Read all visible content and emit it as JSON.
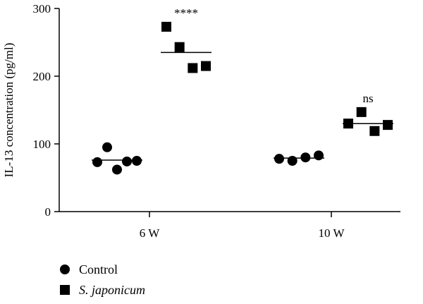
{
  "chart_data": {
    "type": "scatter",
    "ylabel": "IL-13 concentration (pg/ml)",
    "ylim": [
      0,
      300
    ],
    "yticks": [
      0,
      100,
      200,
      300
    ],
    "categories": [
      "6 W",
      "10 W"
    ],
    "series": [
      {
        "name": "Control",
        "marker": "circle",
        "color": "#000000",
        "groups": [
          {
            "category": "6 W",
            "values": [
              73,
              95,
              62,
              74,
              75
            ],
            "mean": 76
          },
          {
            "category": "10 W",
            "values": [
              78,
              75,
              80,
              83
            ],
            "mean": 79
          }
        ]
      },
      {
        "name": "S. japonicum",
        "marker": "square",
        "color": "#000000",
        "groups": [
          {
            "category": "6 W",
            "values": [
              273,
              243,
              212,
              215
            ],
            "mean": 235
          },
          {
            "category": "10 W",
            "values": [
              130,
              147,
              119,
              128
            ],
            "mean": 130
          }
        ]
      }
    ],
    "annotations": [
      {
        "category": "6 W",
        "series": "S. japonicum",
        "text": "****"
      },
      {
        "category": "10 W",
        "series": "S. japonicum",
        "text": "ns"
      }
    ],
    "legend": {
      "position": "bottom-left",
      "items": [
        {
          "label": "Control",
          "marker": "circle"
        },
        {
          "label": "S. japonicum",
          "marker": "square"
        }
      ]
    },
    "grid": false
  }
}
